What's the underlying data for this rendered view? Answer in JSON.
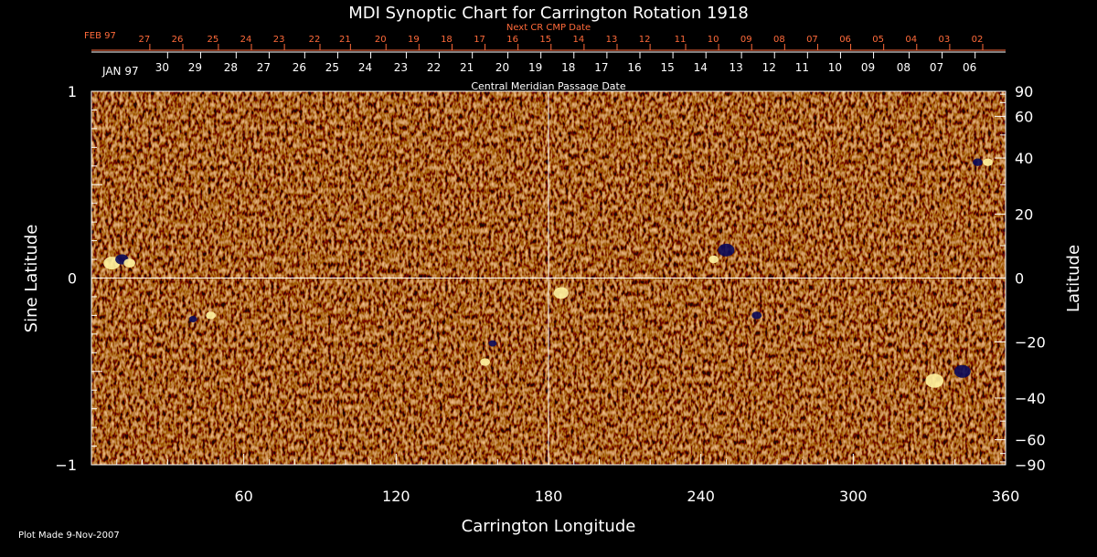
{
  "colors": {
    "background": "#000000",
    "axis": "#ffffff",
    "next_cr_dates": "#ff6a3a",
    "field_neutral": "#e0451a",
    "field_positive": "#fff3a0",
    "field_negative": "#0a0a5a"
  },
  "chart_data": {
    "type": "heatmap",
    "title": "MDI Synoptic Chart for Carrington Rotation 1918",
    "xlabel": "Carrington Longitude",
    "ylabel_left": "Sine Latitude",
    "ylabel_right": "Latitude",
    "xlim": [
      0,
      360
    ],
    "ylim": [
      -1,
      1
    ],
    "x_ticks": [
      60,
      120,
      180,
      240,
      300,
      360
    ],
    "y_ticks_left": [
      {
        "value": 1,
        "label": "1"
      },
      {
        "value": 0,
        "label": "0"
      },
      {
        "value": -1,
        "label": "−1"
      }
    ],
    "y_ticks_right": [
      {
        "lat": 90,
        "label": "90"
      },
      {
        "lat": 60,
        "label": "60"
      },
      {
        "lat": 40,
        "label": "40"
      },
      {
        "lat": 20,
        "label": "20"
      },
      {
        "lat": 0,
        "label": "0"
      },
      {
        "lat": -20,
        "label": "−20"
      },
      {
        "lat": -40,
        "label": "−40"
      },
      {
        "lat": -60,
        "label": "−60"
      },
      {
        "lat": -90,
        "label": "−90"
      }
    ],
    "minor_lat_ticks": [
      10,
      30,
      50,
      70,
      80,
      -10,
      -30,
      -50,
      -70,
      -80
    ],
    "central_meridian": {
      "label": "Central Meridian Passage Date",
      "month_label": "JAN 97",
      "days": [
        {
          "day": "30",
          "lon": 30
        },
        {
          "day": "29",
          "lon": 43
        },
        {
          "day": "28",
          "lon": 57
        },
        {
          "day": "27",
          "lon": 70
        },
        {
          "day": "26",
          "lon": 84
        },
        {
          "day": "25",
          "lon": 97
        },
        {
          "day": "24",
          "lon": 110
        },
        {
          "day": "23",
          "lon": 124
        },
        {
          "day": "22",
          "lon": 137
        },
        {
          "day": "21",
          "lon": 150
        },
        {
          "day": "20",
          "lon": 164
        },
        {
          "day": "19",
          "lon": 177
        },
        {
          "day": "18",
          "lon": 190
        },
        {
          "day": "17",
          "lon": 203
        },
        {
          "day": "16",
          "lon": 216
        },
        {
          "day": "15",
          "lon": 229
        },
        {
          "day": "14",
          "lon": 242
        },
        {
          "day": "13",
          "lon": 256
        },
        {
          "day": "12",
          "lon": 269
        },
        {
          "day": "11",
          "lon": 282
        },
        {
          "day": "10",
          "lon": 295
        },
        {
          "day": "09",
          "lon": 308
        },
        {
          "day": "08",
          "lon": 322
        },
        {
          "day": "07",
          "lon": 335
        },
        {
          "day": "06",
          "lon": 348
        }
      ]
    },
    "next_cr": {
      "label": "Next CR CMP Date",
      "month_label": "FEB 97",
      "days": [
        {
          "day": "27",
          "lon": 23
        },
        {
          "day": "26",
          "lon": 36
        },
        {
          "day": "25",
          "lon": 50
        },
        {
          "day": "24",
          "lon": 63
        },
        {
          "day": "23",
          "lon": 76
        },
        {
          "day": "22",
          "lon": 90
        },
        {
          "day": "21",
          "lon": 102
        },
        {
          "day": "20",
          "lon": 116
        },
        {
          "day": "19",
          "lon": 129
        },
        {
          "day": "18",
          "lon": 142
        },
        {
          "day": "17",
          "lon": 155
        },
        {
          "day": "16",
          "lon": 168
        },
        {
          "day": "15",
          "lon": 181
        },
        {
          "day": "14",
          "lon": 194
        },
        {
          "day": "13",
          "lon": 207
        },
        {
          "day": "12",
          "lon": 220
        },
        {
          "day": "11",
          "lon": 234
        },
        {
          "day": "10",
          "lon": 247
        },
        {
          "day": "09",
          "lon": 260
        },
        {
          "day": "08",
          "lon": 273
        },
        {
          "day": "07",
          "lon": 286
        },
        {
          "day": "06",
          "lon": 299
        },
        {
          "day": "05",
          "lon": 312
        },
        {
          "day": "04",
          "lon": 325
        },
        {
          "day": "03",
          "lon": 338
        },
        {
          "day": "02",
          "lon": 351
        }
      ]
    },
    "active_regions": [
      {
        "lon": 8,
        "sinlat": 0.08,
        "polarity": "positive",
        "size": 1.0
      },
      {
        "lon": 12,
        "sinlat": 0.1,
        "polarity": "negative",
        "size": 0.8
      },
      {
        "lon": 15,
        "sinlat": 0.08,
        "polarity": "positive",
        "size": 0.7
      },
      {
        "lon": 40,
        "sinlat": -0.22,
        "polarity": "negative",
        "size": 0.5
      },
      {
        "lon": 47,
        "sinlat": -0.2,
        "polarity": "positive",
        "size": 0.6
      },
      {
        "lon": 158,
        "sinlat": -0.35,
        "polarity": "negative",
        "size": 0.5
      },
      {
        "lon": 155,
        "sinlat": -0.45,
        "polarity": "positive",
        "size": 0.6
      },
      {
        "lon": 185,
        "sinlat": -0.08,
        "polarity": "positive",
        "size": 0.9
      },
      {
        "lon": 250,
        "sinlat": 0.15,
        "polarity": "negative",
        "size": 1.0
      },
      {
        "lon": 245,
        "sinlat": 0.1,
        "polarity": "positive",
        "size": 0.6
      },
      {
        "lon": 262,
        "sinlat": -0.2,
        "polarity": "negative",
        "size": 0.6
      },
      {
        "lon": 332,
        "sinlat": -0.55,
        "polarity": "positive",
        "size": 1.1
      },
      {
        "lon": 343,
        "sinlat": -0.5,
        "polarity": "negative",
        "size": 1.0
      },
      {
        "lon": 349,
        "sinlat": 0.62,
        "polarity": "negative",
        "size": 0.6
      },
      {
        "lon": 353,
        "sinlat": 0.62,
        "polarity": "positive",
        "size": 0.6
      }
    ]
  },
  "footer": {
    "plot_made": "Plot Made  9-Nov-2007"
  }
}
